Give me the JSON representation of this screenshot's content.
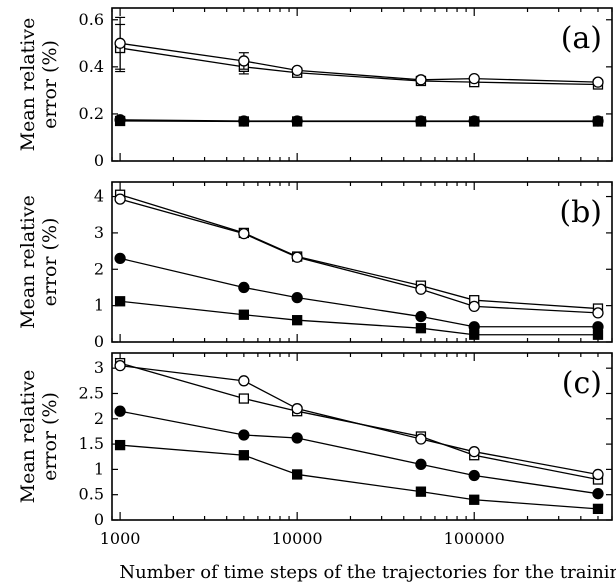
{
  "figure": {
    "xlabel": "Number of time steps of the trajectories for the training",
    "xticks": [
      1000,
      10000,
      100000
    ],
    "xtick_labels": [
      "1000",
      "10000",
      "100000"
    ]
  },
  "chart_data": [
    {
      "type": "line",
      "panel_label": "(a)",
      "xscale": "log",
      "xlim": [
        900,
        600000
      ],
      "ylim": [
        0,
        0.65
      ],
      "yticks": [
        0,
        0.2,
        0.4,
        0.6
      ],
      "ytick_labels": [
        "0",
        "0.2",
        "0.4",
        "0.6"
      ],
      "ylabel_line1": "Mean relative",
      "ylabel_line2": "error (%)",
      "x": [
        1000,
        5000,
        10000,
        50000,
        100000,
        500000
      ],
      "series": [
        {
          "marker": "open-square",
          "values": [
            0.48,
            0.4,
            0.375,
            0.34,
            0.335,
            0.325
          ],
          "yerr": [
            0.1,
            0.03,
            0.01,
            0.01,
            0.01,
            0.01
          ]
        },
        {
          "marker": "open-circle",
          "values": [
            0.5,
            0.425,
            0.385,
            0.345,
            0.35,
            0.335
          ],
          "yerr": [
            0.11,
            0.035,
            0.01,
            0.01,
            0.01,
            0.01
          ]
        },
        {
          "marker": "filled-circle",
          "values": [
            0.175,
            0.17,
            0.17,
            0.17,
            0.17,
            0.17
          ]
        },
        {
          "marker": "filled-square",
          "values": [
            0.17,
            0.168,
            0.168,
            0.168,
            0.168,
            0.168
          ]
        }
      ],
      "grid": false,
      "legend": "none"
    },
    {
      "type": "line",
      "panel_label": "(b)",
      "xscale": "log",
      "xlim": [
        900,
        600000
      ],
      "ylim": [
        0,
        4.4
      ],
      "yticks": [
        0,
        1,
        2,
        3,
        4
      ],
      "ytick_labels": [
        "0",
        "1",
        "2",
        "3",
        "4"
      ],
      "ylabel_line1": "Mean relative",
      "ylabel_line2": "error (%)",
      "x": [
        1000,
        5000,
        10000,
        50000,
        100000,
        500000
      ],
      "series": [
        {
          "marker": "open-square",
          "values": [
            4.05,
            3.0,
            2.35,
            1.55,
            1.15,
            0.92
          ]
        },
        {
          "marker": "open-circle",
          "values": [
            3.93,
            2.98,
            2.33,
            1.45,
            0.98,
            0.8
          ]
        },
        {
          "marker": "filled-circle",
          "values": [
            2.3,
            1.5,
            1.22,
            0.7,
            0.42,
            0.42
          ]
        },
        {
          "marker": "filled-square",
          "values": [
            1.12,
            0.75,
            0.6,
            0.38,
            0.2,
            0.2
          ]
        }
      ],
      "grid": false,
      "legend": "none"
    },
    {
      "type": "line",
      "panel_label": "(c)",
      "xscale": "log",
      "xlim": [
        900,
        600000
      ],
      "ylim": [
        0,
        3.3
      ],
      "yticks": [
        0,
        0.5,
        1,
        1.5,
        2,
        2.5,
        3
      ],
      "ytick_labels": [
        "0",
        "0.5",
        "1",
        "1.5",
        "2",
        "2.5",
        "3"
      ],
      "ylabel_line1": "Mean relative",
      "ylabel_line2": "error (%)",
      "x": [
        1000,
        5000,
        10000,
        50000,
        100000,
        500000
      ],
      "series": [
        {
          "marker": "open-square",
          "values": [
            3.1,
            2.4,
            2.15,
            1.65,
            1.28,
            0.8
          ]
        },
        {
          "marker": "open-circle",
          "values": [
            3.05,
            2.75,
            2.2,
            1.6,
            1.35,
            0.9
          ]
        },
        {
          "marker": "filled-circle",
          "values": [
            2.15,
            1.68,
            1.62,
            1.1,
            0.88,
            0.52
          ]
        },
        {
          "marker": "filled-square",
          "values": [
            1.48,
            1.28,
            0.9,
            0.56,
            0.4,
            0.22
          ]
        }
      ],
      "grid": false,
      "legend": "none"
    }
  ]
}
